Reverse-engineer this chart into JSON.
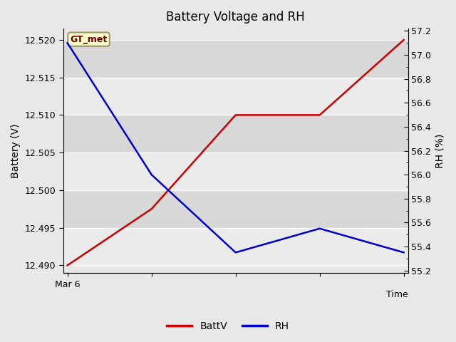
{
  "title": "Battery Voltage and RH",
  "xlabel": "Time",
  "ylabel_left": "Battery (V)",
  "ylabel_right": "RH (%)",
  "x_positions": [
    0,
    1,
    2,
    3,
    4
  ],
  "battv": [
    12.49,
    12.4975,
    12.51,
    12.51,
    12.52
  ],
  "rh": [
    57.1,
    56.0,
    55.35,
    55.55,
    55.35
  ],
  "ylim_left": [
    12.489,
    12.5215
  ],
  "ylim_right": [
    55.18,
    57.22
  ],
  "batt_color": "#cc0000",
  "rh_color": "#0000cc",
  "annotation_text": "GT_met",
  "annotation_bg": "#ffffcc",
  "annotation_border": "#999966",
  "x_tick_label_first": "Mar 6",
  "fig_bg": "#e8e8e8",
  "band_light": "#ebebeb",
  "band_dark": "#d8d8d8",
  "grid_color": "#ffffff",
  "line_width": 1.8,
  "yticks_left": [
    12.49,
    12.495,
    12.5,
    12.505,
    12.51,
    12.515,
    12.52
  ],
  "yticks_right": [
    55.2,
    55.4,
    55.6,
    55.8,
    56.0,
    56.2,
    56.4,
    56.6,
    56.8,
    57.0,
    57.2
  ]
}
